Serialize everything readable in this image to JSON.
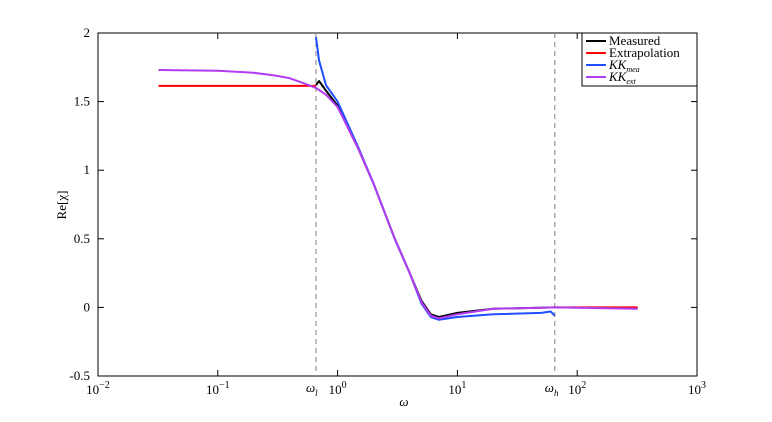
{
  "chart_data": {
    "type": "line",
    "xlabel": "ω",
    "ylabel": "Re[χ]",
    "xscale": "log",
    "xlim": [
      0.01,
      1000
    ],
    "ylim": [
      -0.5,
      2
    ],
    "xticks": [
      {
        "value": 0.01,
        "label": "10",
        "exponent": "−2"
      },
      {
        "value": 0.1,
        "label": "10",
        "exponent": "−1"
      },
      {
        "value": 1,
        "label": "10",
        "exponent": "0"
      },
      {
        "value": 10,
        "label": "10",
        "exponent": "1"
      },
      {
        "value": 100,
        "label": "10",
        "exponent": "2"
      },
      {
        "value": 1000,
        "label": "10",
        "exponent": "3"
      }
    ],
    "yticks": [
      -0.5,
      0,
      0.5,
      1,
      1.5,
      2
    ],
    "legend": "top-right",
    "vlines": [
      {
        "x": 0.66,
        "label": "ω",
        "subscript": "l",
        "color": "#808080"
      },
      {
        "x": 65,
        "label": "ω",
        "subscript": "h",
        "color": "#808080"
      }
    ],
    "series": [
      {
        "name": "Measured",
        "color": "#000000",
        "x": [
          0.66,
          0.7,
          0.8,
          1,
          1.5,
          2,
          3,
          4,
          5,
          6,
          7,
          10,
          20,
          65
        ],
        "values": [
          1.62,
          1.65,
          1.58,
          1.47,
          1.15,
          0.9,
          0.5,
          0.25,
          0.05,
          -0.05,
          -0.07,
          -0.04,
          -0.01,
          0
        ]
      },
      {
        "name": "Extrapolation",
        "color": "#ff0000",
        "x": [
          0.032,
          0.66,
          1,
          65,
          320
        ],
        "values": [
          1.615,
          1.615,
          null,
          0,
          0
        ]
      },
      {
        "name": "KK",
        "subscript": "mea",
        "color": "#1f4fff",
        "x": [
          0.66,
          0.7,
          0.8,
          1,
          1.5,
          2,
          3,
          4,
          5,
          6,
          7,
          10,
          20,
          50,
          60,
          65
        ],
        "values": [
          1.97,
          1.8,
          1.62,
          1.5,
          1.16,
          0.9,
          0.5,
          0.25,
          0.03,
          -0.07,
          -0.09,
          -0.07,
          -0.05,
          -0.04,
          -0.03,
          -0.06
        ]
      },
      {
        "name": "KK",
        "subscript": "ext",
        "color": "#b43cf0",
        "x": [
          0.032,
          0.1,
          0.2,
          0.3,
          0.4,
          0.5,
          0.66,
          0.8,
          1,
          1.5,
          2,
          3,
          4,
          5,
          6,
          7,
          10,
          20,
          65,
          320
        ],
        "values": [
          1.73,
          1.725,
          1.71,
          1.69,
          1.67,
          1.64,
          1.6,
          1.55,
          1.46,
          1.15,
          0.9,
          0.5,
          0.25,
          0.04,
          -0.06,
          -0.08,
          -0.05,
          -0.01,
          0,
          -0.01
        ]
      }
    ]
  }
}
